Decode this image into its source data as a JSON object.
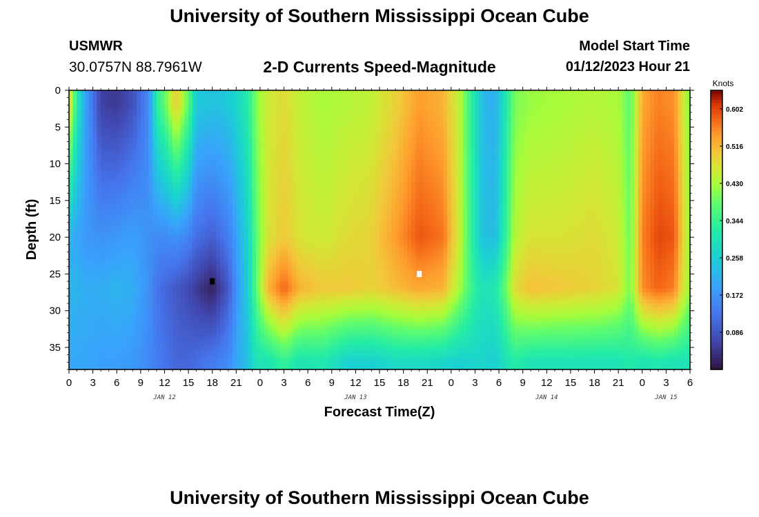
{
  "header": {
    "title": "University of Southern Mississippi Ocean Cube",
    "station_name": "USMWR",
    "station_coords": "30.0757N  88.7961W",
    "subtitle": "2-D Currents Speed-Magnitude",
    "model_start_label": "Model Start Time",
    "model_start_time": "01/12/2023 Hour 21"
  },
  "footer": {
    "title": "University of Southern Mississippi Ocean Cube"
  },
  "chart_data": {
    "type": "heatmap",
    "title": "2-D Currents Speed-Magnitude",
    "xlabel": "Forecast Time(Z)",
    "ylabel": "Depth (ft)",
    "x_range_hours": [
      0,
      78
    ],
    "y_range_ft": [
      0,
      38
    ],
    "x_tick_hours": [
      0,
      3,
      6,
      9,
      12,
      15,
      18,
      21,
      24,
      27,
      30,
      33,
      36,
      39,
      42,
      45,
      48,
      51,
      54,
      57,
      60,
      63,
      66,
      69,
      72,
      75,
      78
    ],
    "x_tick_labels": [
      "0",
      "3",
      "6",
      "9",
      "12",
      "15",
      "18",
      "21",
      "0",
      "3",
      "6",
      "9",
      "12",
      "15",
      "18",
      "21",
      "0",
      "3",
      "6",
      "9",
      "12",
      "15",
      "18",
      "21",
      "0",
      "3",
      "6"
    ],
    "y_ticks": [
      0,
      5,
      10,
      15,
      20,
      25,
      30,
      35
    ],
    "y_tick_labels": [
      "0",
      "5",
      "10",
      "15",
      "20",
      "25",
      "30",
      "35"
    ],
    "date_labels": [
      {
        "text": "JAN 12",
        "hour": 12
      },
      {
        "text": "JAN 13",
        "hour": 36
      },
      {
        "text": "JAN 14",
        "hour": 60
      },
      {
        "text": "JAN 15",
        "hour": 75
      }
    ],
    "colorbar": {
      "label": "Knots",
      "min": 0,
      "max": 0.645,
      "ticks": [
        0.086,
        0.172,
        0.258,
        0.344,
        0.43,
        0.516,
        0.602
      ],
      "tick_labels": [
        "0.086",
        "0.172",
        "0.258",
        "0.344",
        "0.430",
        "0.516",
        "0.602"
      ]
    },
    "markers": [
      {
        "hour": 18,
        "depth": 26,
        "color": "#000000",
        "name": "min-marker"
      },
      {
        "hour": 44,
        "depth": 25,
        "color": "#ffffff",
        "name": "max-marker"
      }
    ],
    "column_profiles": [
      {
        "hour": 0,
        "top": 0.5,
        "mid": 0.22,
        "deep": 0.22,
        "bottom": 0.2
      },
      {
        "hour": 1,
        "top": 0.32,
        "mid": 0.2,
        "deep": 0.22,
        "bottom": 0.2
      },
      {
        "hour": 2,
        "top": 0.2,
        "mid": 0.18,
        "deep": 0.21,
        "bottom": 0.2
      },
      {
        "hour": 4,
        "top": 0.06,
        "mid": 0.17,
        "deep": 0.21,
        "bottom": 0.19
      },
      {
        "hour": 6,
        "top": 0.05,
        "mid": 0.18,
        "deep": 0.22,
        "bottom": 0.19
      },
      {
        "hour": 8,
        "top": 0.08,
        "mid": 0.19,
        "deep": 0.21,
        "bottom": 0.18
      },
      {
        "hour": 10,
        "top": 0.16,
        "mid": 0.17,
        "deep": 0.17,
        "bottom": 0.16
      },
      {
        "hour": 11,
        "top": 0.33,
        "mid": 0.16,
        "deep": 0.13,
        "bottom": 0.14
      },
      {
        "hour": 12,
        "top": 0.38,
        "mid": 0.16,
        "deep": 0.11,
        "bottom": 0.13
      },
      {
        "hour": 13.5,
        "top": 0.5,
        "mid": 0.17,
        "deep": 0.09,
        "bottom": 0.11
      },
      {
        "hour": 15,
        "top": 0.38,
        "mid": 0.15,
        "deep": 0.07,
        "bottom": 0.11
      },
      {
        "hour": 16,
        "top": 0.25,
        "mid": 0.12,
        "deep": 0.05,
        "bottom": 0.12
      },
      {
        "hour": 18,
        "top": 0.24,
        "mid": 0.1,
        "deep": 0.02,
        "bottom": 0.14
      },
      {
        "hour": 20,
        "top": 0.25,
        "mid": 0.14,
        "deep": 0.09,
        "bottom": 0.16
      },
      {
        "hour": 21,
        "top": 0.27,
        "mid": 0.19,
        "deep": 0.17,
        "bottom": 0.2
      },
      {
        "hour": 22.5,
        "top": 0.32,
        "mid": 0.27,
        "deep": 0.26,
        "bottom": 0.24
      },
      {
        "hour": 23.5,
        "top": 0.41,
        "mid": 0.38,
        "deep": 0.38,
        "bottom": 0.3
      },
      {
        "hour": 25,
        "top": 0.46,
        "mid": 0.47,
        "deep": 0.52,
        "bottom": 0.3
      },
      {
        "hour": 27,
        "top": 0.48,
        "mid": 0.5,
        "deep": 0.58,
        "bottom": 0.34
      },
      {
        "hour": 29,
        "top": 0.45,
        "mid": 0.47,
        "deep": 0.52,
        "bottom": 0.3
      },
      {
        "hour": 32,
        "top": 0.43,
        "mid": 0.46,
        "deep": 0.5,
        "bottom": 0.31
      },
      {
        "hour": 35,
        "top": 0.44,
        "mid": 0.48,
        "deep": 0.5,
        "bottom": 0.26
      },
      {
        "hour": 38,
        "top": 0.45,
        "mid": 0.49,
        "deep": 0.49,
        "bottom": 0.26
      },
      {
        "hour": 41,
        "top": 0.49,
        "mid": 0.54,
        "deep": 0.51,
        "bottom": 0.28
      },
      {
        "hour": 44,
        "top": 0.54,
        "mid": 0.59,
        "deep": 0.53,
        "bottom": 0.28
      },
      {
        "hour": 47,
        "top": 0.52,
        "mid": 0.57,
        "deep": 0.52,
        "bottom": 0.27
      },
      {
        "hour": 49,
        "top": 0.45,
        "mid": 0.46,
        "deep": 0.43,
        "bottom": 0.26
      },
      {
        "hour": 51,
        "top": 0.3,
        "mid": 0.3,
        "deep": 0.33,
        "bottom": 0.27
      },
      {
        "hour": 52,
        "top": 0.23,
        "mid": 0.24,
        "deep": 0.3,
        "bottom": 0.27
      },
      {
        "hour": 53.5,
        "top": 0.21,
        "mid": 0.23,
        "deep": 0.31,
        "bottom": 0.26
      },
      {
        "hour": 55,
        "top": 0.32,
        "mid": 0.35,
        "deep": 0.4,
        "bottom": 0.3
      },
      {
        "hour": 56,
        "top": 0.4,
        "mid": 0.44,
        "deep": 0.48,
        "bottom": 0.32
      },
      {
        "hour": 58,
        "top": 0.42,
        "mid": 0.47,
        "deep": 0.51,
        "bottom": 0.3
      },
      {
        "hour": 62,
        "top": 0.43,
        "mid": 0.47,
        "deep": 0.5,
        "bottom": 0.3
      },
      {
        "hour": 66,
        "top": 0.44,
        "mid": 0.48,
        "deep": 0.49,
        "bottom": 0.3
      },
      {
        "hour": 69,
        "top": 0.43,
        "mid": 0.46,
        "deep": 0.47,
        "bottom": 0.3
      },
      {
        "hour": 70.5,
        "top": 0.38,
        "mid": 0.39,
        "deep": 0.4,
        "bottom": 0.32
      },
      {
        "hour": 72,
        "top": 0.53,
        "mid": 0.56,
        "deep": 0.55,
        "bottom": 0.3
      },
      {
        "hour": 74,
        "top": 0.56,
        "mid": 0.6,
        "deep": 0.58,
        "bottom": 0.31
      },
      {
        "hour": 76,
        "top": 0.55,
        "mid": 0.59,
        "deep": 0.56,
        "bottom": 0.3
      },
      {
        "hour": 77,
        "top": 0.48,
        "mid": 0.5,
        "deep": 0.48,
        "bottom": 0.3
      },
      {
        "hour": 78,
        "top": 0.4,
        "mid": 0.42,
        "deep": 0.42,
        "bottom": 0.3
      }
    ],
    "profile_depths_ft": {
      "top": 2,
      "mid": 20,
      "deep": 27,
      "bottom": 37
    }
  }
}
